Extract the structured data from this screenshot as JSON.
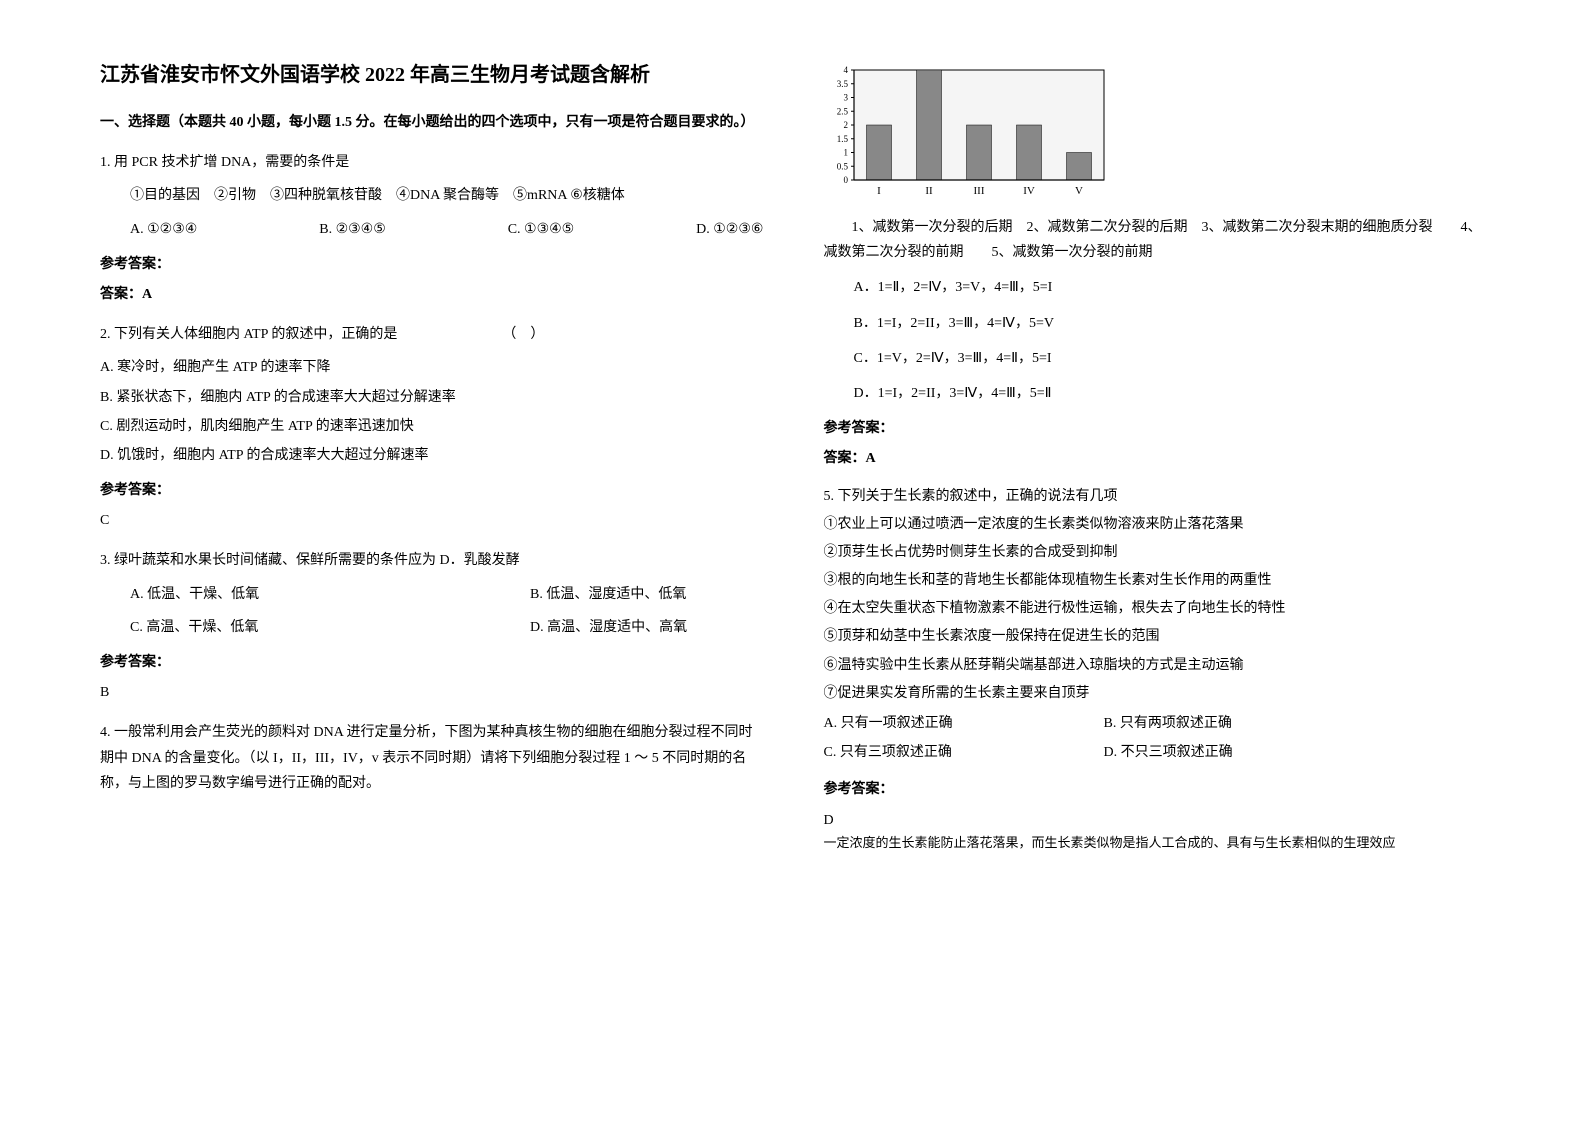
{
  "title": "江苏省淮安市怀文外国语学校 2022 年高三生物月考试题含解析",
  "section1_intro": "一、选择题（本题共 40 小题，每小题 1.5 分。在每小题给出的四个选项中，只有一项是符合题目要求的。）",
  "q1": {
    "stem": "1. 用 PCR 技术扩增 DNA，需要的条件是",
    "items": "①目的基因　②引物　③四种脱氧核苷酸　④DNA 聚合酶等　⑤mRNA ⑥核糖体",
    "optA": "A. ①②③④",
    "optB": "B. ②③④⑤",
    "optC": "C. ①③④⑤",
    "optD": "D. ①②③⑥",
    "answer_label": "参考答案：",
    "answer": "答案：A"
  },
  "q2": {
    "stem": "2. 下列有关人体细胞内 ATP 的叙述中，正确的是　　　　　　　　（　）",
    "optA": "A. 寒冷时，细胞产生 ATP 的速率下降",
    "optB": "B. 紧张状态下，细胞内 ATP 的合成速率大大超过分解速率",
    "optC": "C. 剧烈运动时，肌肉细胞产生 ATP 的速率迅速加快",
    "optD": "D. 饥饿时，细胞内 ATP 的合成速率大大超过分解速率",
    "answer_label": "参考答案：",
    "answer": "C"
  },
  "q3": {
    "stem": "3. 绿叶蔬菜和水果长时间储藏、保鲜所需要的条件应为 D．乳酸发酵",
    "optA": "A. 低温、干燥、低氧",
    "optB": "B. 低温、湿度适中、低氧",
    "optC": "C. 高温、干燥、低氧",
    "optD": "D. 高温、湿度适中、高氧",
    "answer_label": "参考答案：",
    "answer": "B"
  },
  "q4": {
    "stem": "4. 一般常利用会产生荧光的颜料对 DNA 进行定量分析，下图为某种真核生物的细胞在细胞分裂过程不同时期中 DNA 的含量变化。（以 I，II，III，IV，v 表示不同时期）请将下列细胞分裂过程 1 ～ 5 不同时期的名称，与上图的罗马数字编号进行正确的配对。"
  },
  "chart": {
    "type": "bar",
    "categories": [
      "I",
      "II",
      "III",
      "IV",
      "V"
    ],
    "values": [
      2,
      4,
      2,
      2,
      1
    ],
    "ylim": [
      0,
      4
    ],
    "yticks": [
      0,
      0.5,
      1,
      1.5,
      2,
      2.5,
      3,
      3.5,
      4
    ],
    "bar_color": "#888888",
    "background_color": "#f5f5f5",
    "axis_color": "#000000",
    "bar_width": 0.5
  },
  "q4_legend": "1、减数第一次分裂的后期　2、减数第二次分裂的后期　3、减数第二次分裂末期的细胞质分裂　　4、减数第二次分裂的前期　　5、减数第一次分裂的前期",
  "q4_opts": {
    "A": "A．1=Ⅱ，2=Ⅳ，3=V，4=Ⅲ，5=I",
    "B": "B．1=I，2=II，3=Ⅲ，4=Ⅳ，5=V",
    "C": "C．1=V，2=Ⅳ，3=Ⅲ，4=Ⅱ，5=I",
    "D": "D．1=I，2=II，3=Ⅳ，4=Ⅲ，5=Ⅱ"
  },
  "q4_answer_label": "参考答案：",
  "q4_answer": "答案：A",
  "q5": {
    "stem": "5. 下列关于生长素的叙述中，正确的说法有几项",
    "s1": "①农业上可以通过喷洒一定浓度的生长素类似物溶液来防止落花落果",
    "s2": "②顶芽生长占优势时侧芽生长素的合成受到抑制",
    "s3": "③根的向地生长和茎的背地生长都能体现植物生长素对生长作用的两重性",
    "s4": "④在太空失重状态下植物激素不能进行极性运输，根失去了向地生长的特性",
    "s5": "⑤顶芽和幼茎中生长素浓度一般保持在促进生长的范围",
    "s6": "⑥温特实验中生长素从胚芽鞘尖端基部进入琼脂块的方式是主动运输",
    "s7": "⑦促进果实发育所需的生长素主要来自顶芽",
    "optA": "A. 只有一项叙述正确",
    "optB": "B. 只有两项叙述正确",
    "optC": "C. 只有三项叙述正确",
    "optD": "D. 不只三项叙述正确",
    "answer_label": "参考答案：",
    "answer": "D",
    "explain": "一定浓度的生长素能防止落花落果，而生长素类似物是指人工合成的、具有与生长素相似的生理效应"
  }
}
